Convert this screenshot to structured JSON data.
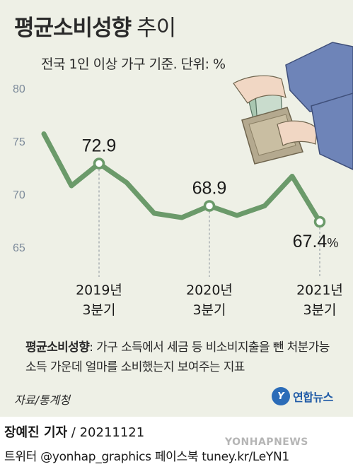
{
  "header": {
    "title_main": "평균소비성향",
    "title_sub": "추이",
    "subtitle": "전국 1인 이상 가구 기준. 단위: %"
  },
  "chart_data": {
    "type": "line",
    "ylim": [
      65,
      80
    ],
    "yticks": [
      65,
      70,
      75,
      80
    ],
    "y": [
      75.7,
      70.8,
      72.9,
      71.1,
      68.2,
      67.8,
      68.9,
      68.0,
      68.9,
      71.7,
      67.4
    ],
    "labeled_points": [
      {
        "index": 2,
        "value": "72.9",
        "unit": "",
        "category": [
          "2019년",
          "3분기"
        ]
      },
      {
        "index": 6,
        "value": "68.9",
        "unit": "",
        "category": [
          "2020년",
          "3분기"
        ]
      },
      {
        "index": 10,
        "value": "67.4",
        "unit": "%",
        "category": [
          "2021년",
          "3분기"
        ]
      }
    ],
    "line_color": "#6b9a6a",
    "background": "#eef0e6"
  },
  "note": {
    "term": "평균소비성향",
    "text": ": 가구 소득에서 세금 등 비소비지출을 뺀 처분가능소득 가운데 얼마를 소비했는지 보여주는 지표"
  },
  "source": "자료/통계청",
  "logo": {
    "mark": "Y",
    "text": "연합뉴스"
  },
  "byline": {
    "name": "장예진 기자",
    "date": " / 20211121"
  },
  "social": "트위터 @yonhap_graphics  페이스북 tuney.kr/LeYN1",
  "watermark": "YONHAPNEWS",
  "icons": {
    "illustration": "wallet-money-icon"
  }
}
